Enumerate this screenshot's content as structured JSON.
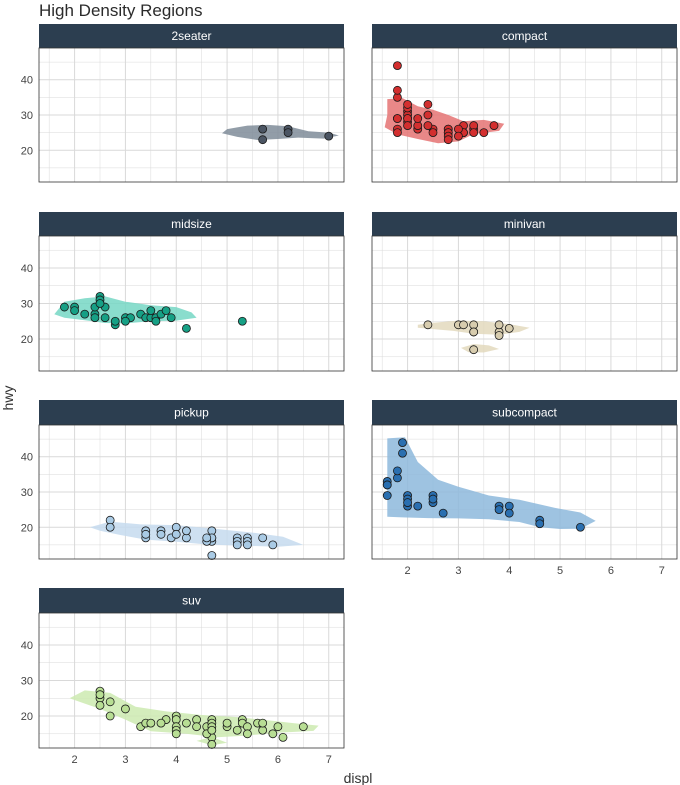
{
  "colors": {
    "strip": "#2c3e50",
    "grid": "#d9d9d9",
    "panel_border": "#333333"
  },
  "chart_data": {
    "type": "scatter",
    "title": "High Density Regions",
    "xlabel": "displ",
    "ylabel": "hwy",
    "xlim": [
      1.3,
      7.3
    ],
    "ylim": [
      11,
      49
    ],
    "x_ticks": [
      2,
      3,
      4,
      5,
      6,
      7
    ],
    "y_ticks": [
      20,
      30,
      40
    ],
    "grid": true,
    "panels": [
      {
        "name": "2seater",
        "color": "#7f8c99",
        "point_color": "#4b5563",
        "hdr": [
          [
            [
              5.2,
              23.8
            ],
            [
              5.6,
              22.9
            ],
            [
              6.0,
              23.2
            ],
            [
              6.4,
              23.6
            ],
            [
              6.9,
              23.3
            ],
            [
              7.2,
              24.2
            ],
            [
              7.0,
              25.0
            ],
            [
              6.6,
              25.4
            ],
            [
              6.2,
              26.8
            ],
            [
              5.8,
              27.2
            ],
            [
              5.4,
              27.0
            ],
            [
              5.0,
              26.0
            ],
            [
              4.9,
              24.8
            ]
          ]
        ],
        "points": [
          [
            5.7,
            26
          ],
          [
            5.7,
            23
          ],
          [
            6.2,
            26
          ],
          [
            6.2,
            25
          ],
          [
            7.0,
            24
          ]
        ]
      },
      {
        "name": "compact",
        "color": "#e57373",
        "point_color": "#d32f2f",
        "hdr": [
          [
            [
              1.6,
              30.0
            ],
            [
              1.6,
              34.5
            ],
            [
              1.9,
              34.8
            ],
            [
              2.2,
              32.5
            ],
            [
              2.5,
              31.5
            ],
            [
              2.8,
              30.0
            ],
            [
              3.1,
              28.2
            ],
            [
              3.5,
              28.6
            ],
            [
              3.9,
              27.5
            ],
            [
              3.8,
              25.5
            ],
            [
              3.3,
              24.6
            ],
            [
              3.0,
              22.5
            ],
            [
              2.6,
              22.0
            ],
            [
              2.2,
              23.2
            ],
            [
              1.8,
              24.5
            ],
            [
              1.55,
              26.5
            ]
          ]
        ],
        "points": [
          [
            1.8,
            29
          ],
          [
            1.8,
            29
          ],
          [
            2.0,
            31
          ],
          [
            2.0,
            30
          ],
          [
            2.8,
            26
          ],
          [
            2.8,
            26
          ],
          [
            3.1,
            27
          ],
          [
            1.8,
            26
          ],
          [
            1.8,
            25
          ],
          [
            2.0,
            28
          ],
          [
            2.0,
            29
          ],
          [
            2.8,
            25
          ],
          [
            2.8,
            25
          ],
          [
            3.1,
            25
          ],
          [
            3.1,
            25
          ],
          [
            2.2,
            26
          ],
          [
            2.2,
            27
          ],
          [
            2.4,
            30
          ],
          [
            2.4,
            33
          ],
          [
            3.0,
            26
          ],
          [
            3.3,
            26
          ],
          [
            3.3,
            27
          ],
          [
            2.0,
            29
          ],
          [
            2.0,
            32
          ],
          [
            1.8,
            35
          ],
          [
            1.8,
            37
          ],
          [
            1.8,
            44
          ],
          [
            2.0,
            33
          ],
          [
            2.5,
            26
          ],
          [
            2.5,
            25
          ],
          [
            2.8,
            24
          ],
          [
            2.8,
            23
          ],
          [
            3.0,
            24
          ],
          [
            3.3,
            25
          ],
          [
            3.5,
            25
          ],
          [
            3.7,
            27
          ],
          [
            2.4,
            27
          ],
          [
            2.2,
            29
          ],
          [
            2.0,
            27
          ]
        ]
      },
      {
        "name": "midsize",
        "color": "#76d7c4",
        "point_color": "#16a085",
        "hdr": [
          [
            [
              1.6,
              27.0
            ],
            [
              1.8,
              30.5
            ],
            [
              2.2,
              31.5
            ],
            [
              2.6,
              32.0
            ],
            [
              3.0,
              30.5
            ],
            [
              3.5,
              29.5
            ],
            [
              4.0,
              29.0
            ],
            [
              4.3,
              27.5
            ],
            [
              4.4,
              26.0
            ],
            [
              4.0,
              25.2
            ],
            [
              3.5,
              25.0
            ],
            [
              3.0,
              24.4
            ],
            [
              2.6,
              24.5
            ],
            [
              2.2,
              25.3
            ],
            [
              1.8,
              26.0
            ]
          ]
        ],
        "points": [
          [
            1.8,
            29
          ],
          [
            2.0,
            29
          ],
          [
            2.0,
            28
          ],
          [
            2.4,
            27
          ],
          [
            2.4,
            29
          ],
          [
            2.5,
            32
          ],
          [
            2.5,
            31
          ],
          [
            2.6,
            29
          ],
          [
            2.6,
            26
          ],
          [
            2.8,
            24
          ],
          [
            2.8,
            25
          ],
          [
            3.0,
            26
          ],
          [
            3.1,
            26
          ],
          [
            3.3,
            27
          ],
          [
            3.4,
            26
          ],
          [
            3.5,
            26
          ],
          [
            3.5,
            28
          ],
          [
            3.6,
            26
          ],
          [
            3.7,
            27
          ],
          [
            3.8,
            28
          ],
          [
            3.9,
            26
          ],
          [
            4.2,
            23
          ],
          [
            5.3,
            25
          ],
          [
            3.6,
            25
          ],
          [
            2.5,
            30
          ],
          [
            2.2,
            27
          ],
          [
            2.4,
            26
          ],
          [
            3.0,
            25
          ]
        ]
      },
      {
        "name": "minivan",
        "color": "#e3d9bd",
        "point_color": "#d7ccae",
        "hdr": [
          [
            [
              2.2,
              24.0
            ],
            [
              2.5,
              24.6
            ],
            [
              3.0,
              25.2
            ],
            [
              3.5,
              25.0
            ],
            [
              4.0,
              24.2
            ],
            [
              4.4,
              23.2
            ],
            [
              4.2,
              22.0
            ],
            [
              3.8,
              21.2
            ],
            [
              3.3,
              21.5
            ],
            [
              2.9,
              22.3
            ],
            [
              2.5,
              22.8
            ],
            [
              2.2,
              23.2
            ]
          ],
          [
            [
              3.05,
              17.5
            ],
            [
              3.3,
              18.6
            ],
            [
              3.6,
              18.2
            ],
            [
              3.8,
              17.2
            ],
            [
              3.5,
              16.2
            ],
            [
              3.2,
              16.3
            ]
          ]
        ],
        "points": [
          [
            2.4,
            24
          ],
          [
            3.0,
            24
          ],
          [
            3.3,
            22
          ],
          [
            3.3,
            24
          ],
          [
            3.3,
            17
          ],
          [
            3.3,
            22
          ],
          [
            3.8,
            22
          ],
          [
            3.8,
            21
          ],
          [
            4.0,
            23
          ],
          [
            3.8,
            24
          ],
          [
            3.1,
            24
          ]
        ]
      },
      {
        "name": "pickup",
        "color": "#c6dbef",
        "point_color": "#aacbe5",
        "hdr": [
          [
            [
              2.3,
              20.0
            ],
            [
              2.7,
              21.6
            ],
            [
              3.3,
              20.8
            ],
            [
              4.0,
              20.6
            ],
            [
              4.8,
              19.5
            ],
            [
              5.5,
              18.5
            ],
            [
              6.1,
              17.3
            ],
            [
              6.5,
              15.0
            ],
            [
              6.0,
              14.5
            ],
            [
              5.2,
              14.8
            ],
            [
              4.6,
              15.1
            ],
            [
              4.0,
              15.9
            ],
            [
              3.4,
              16.5
            ],
            [
              2.9,
              17.8
            ],
            [
              2.5,
              19.0
            ]
          ]
        ],
        "points": [
          [
            2.7,
            22
          ],
          [
            2.7,
            20
          ],
          [
            3.4,
            19
          ],
          [
            3.4,
            17
          ],
          [
            3.7,
            19
          ],
          [
            3.7,
            18
          ],
          [
            3.9,
            17
          ],
          [
            4.0,
            20
          ],
          [
            4.0,
            18
          ],
          [
            4.2,
            17
          ],
          [
            4.2,
            19
          ],
          [
            4.7,
            16
          ],
          [
            4.7,
            17
          ],
          [
            4.7,
            19
          ],
          [
            4.7,
            12
          ],
          [
            4.7,
            17
          ],
          [
            5.2,
            17
          ],
          [
            5.2,
            16
          ],
          [
            5.2,
            15
          ],
          [
            5.4,
            17
          ],
          [
            5.4,
            16
          ],
          [
            5.4,
            15
          ],
          [
            5.7,
            17
          ],
          [
            5.9,
            15
          ],
          [
            4.6,
            16
          ],
          [
            4.6,
            17
          ],
          [
            3.4,
            18
          ]
        ]
      },
      {
        "name": "subcompact",
        "color": "#8db8dc",
        "point_color": "#2a6fb0",
        "hdr": [
          [
            [
              1.6,
              23.0
            ],
            [
              1.6,
              45.2
            ],
            [
              1.95,
              45.5
            ],
            [
              2.2,
              38.5
            ],
            [
              2.6,
              33.5
            ],
            [
              3.0,
              31.5
            ],
            [
              3.6,
              29.0
            ],
            [
              4.2,
              27.8
            ],
            [
              4.9,
              25.5
            ],
            [
              5.4,
              24.2
            ],
            [
              5.7,
              21.8
            ],
            [
              5.4,
              19.6
            ],
            [
              5.0,
              19.5
            ],
            [
              4.6,
              20.0
            ],
            [
              4.2,
              21.5
            ],
            [
              3.6,
              22.3
            ],
            [
              3.0,
              22.5
            ],
            [
              2.4,
              22.6
            ],
            [
              1.9,
              22.8
            ]
          ]
        ],
        "points": [
          [
            1.6,
            33
          ],
          [
            1.6,
            32
          ],
          [
            1.6,
            32
          ],
          [
            1.6,
            29
          ],
          [
            1.8,
            34
          ],
          [
            1.8,
            36
          ],
          [
            1.9,
            44
          ],
          [
            1.9,
            41
          ],
          [
            2.0,
            29
          ],
          [
            2.0,
            28
          ],
          [
            2.0,
            26
          ],
          [
            2.2,
            26
          ],
          [
            2.5,
            29
          ],
          [
            2.5,
            27
          ],
          [
            2.7,
            24
          ],
          [
            3.8,
            26
          ],
          [
            3.8,
            25
          ],
          [
            4.0,
            26
          ],
          [
            4.0,
            24
          ],
          [
            4.6,
            22
          ],
          [
            4.6,
            21
          ],
          [
            5.4,
            20
          ],
          [
            2.0,
            27
          ],
          [
            2.5,
            28
          ]
        ]
      },
      {
        "name": "suv",
        "color": "#cdeab0",
        "point_color": "#b8de94",
        "hdr": [
          [
            [
              1.9,
              25.0
            ],
            [
              2.2,
              27.2
            ],
            [
              2.7,
              26.5
            ],
            [
              3.2,
              22.6
            ],
            [
              3.8,
              21.3
            ],
            [
              4.5,
              20.3
            ],
            [
              5.2,
              19.7
            ],
            [
              5.8,
              18.8
            ],
            [
              6.3,
              18.0
            ],
            [
              6.8,
              17.3
            ],
            [
              6.7,
              15.8
            ],
            [
              6.0,
              15.3
            ],
            [
              5.3,
              14.4
            ],
            [
              4.8,
              14.0
            ],
            [
              4.2,
              15.0
            ],
            [
              3.5,
              15.7
            ],
            [
              3.0,
              19.0
            ],
            [
              2.5,
              22.0
            ],
            [
              2.2,
              23.5
            ]
          ],
          [
            [
              4.4,
              13.0
            ],
            [
              4.7,
              14.1
            ],
            [
              5.0,
              12.5
            ],
            [
              4.7,
              11.8
            ]
          ]
        ],
        "points": [
          [
            2.5,
            27
          ],
          [
            2.5,
            25
          ],
          [
            2.5,
            26
          ],
          [
            2.5,
            23
          ],
          [
            2.7,
            20
          ],
          [
            3.0,
            22
          ],
          [
            3.3,
            17
          ],
          [
            3.4,
            18
          ],
          [
            3.8,
            19
          ],
          [
            4.0,
            20
          ],
          [
            4.0,
            19
          ],
          [
            4.0,
            17
          ],
          [
            4.0,
            16
          ],
          [
            4.2,
            18
          ],
          [
            4.4,
            19
          ],
          [
            4.6,
            17
          ],
          [
            4.7,
            19
          ],
          [
            4.7,
            18
          ],
          [
            4.7,
            17
          ],
          [
            4.7,
            14
          ],
          [
            4.7,
            12
          ],
          [
            5.0,
            17
          ],
          [
            5.2,
            16
          ],
          [
            5.3,
            19
          ],
          [
            5.3,
            18
          ],
          [
            5.4,
            17
          ],
          [
            5.4,
            15
          ],
          [
            5.6,
            18
          ],
          [
            5.7,
            16
          ],
          [
            5.7,
            18
          ],
          [
            5.9,
            15
          ],
          [
            6.0,
            17
          ],
          [
            6.1,
            14
          ],
          [
            6.5,
            17
          ],
          [
            4.6,
            15
          ],
          [
            4.4,
            17
          ],
          [
            5.0,
            18
          ],
          [
            3.5,
            18
          ],
          [
            2.7,
            24
          ],
          [
            3.7,
            18
          ],
          [
            4.0,
            15
          ],
          [
            4.7,
            16
          ]
        ]
      }
    ]
  }
}
